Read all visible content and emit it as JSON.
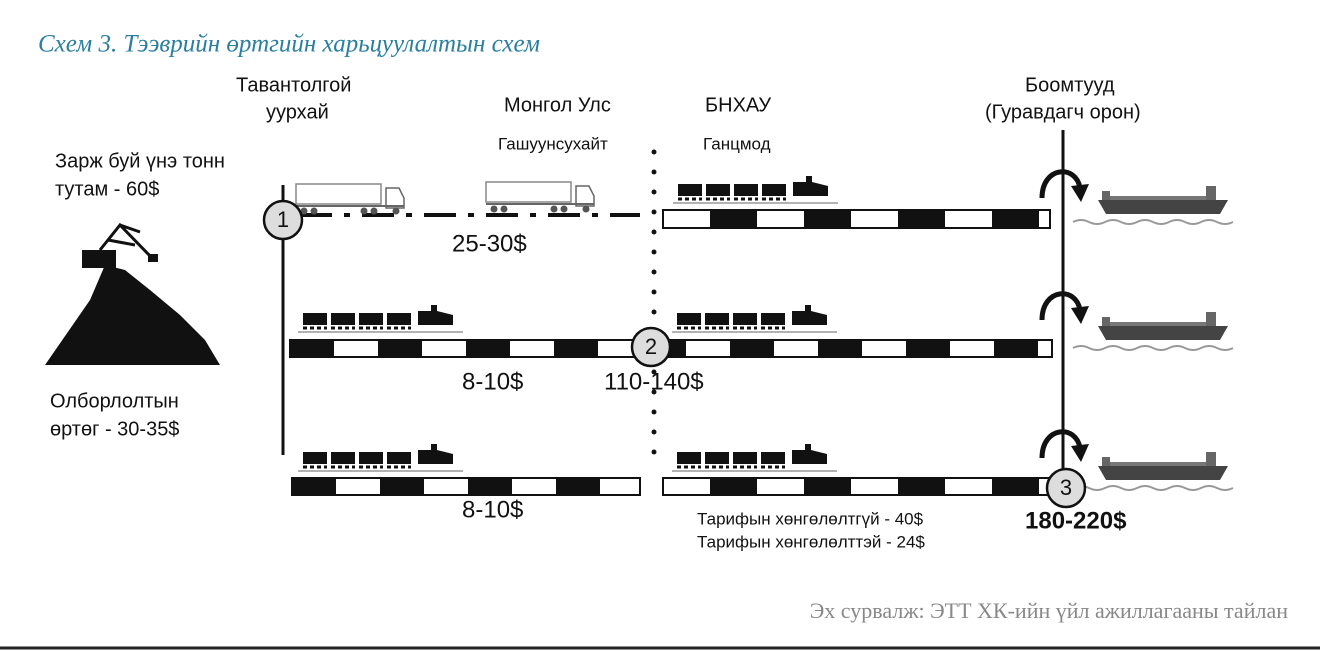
{
  "title": "Схем 3. Тээврийн өртгийн харьцуулалтын схем",
  "headers": {
    "mine": [
      "Тавантолгой",
      "уурхай"
    ],
    "mongolia": "Монгол Улс",
    "border_mn": "Гашуунсухайт",
    "china": "БНХАУ",
    "border_cn": "Ганцмод",
    "ports": [
      "Боомтууд",
      "(Гуравдагч орон)"
    ]
  },
  "sale_price": [
    "Зарж буй үнэ тонн",
    "тутам - 60$"
  ],
  "production_cost": [
    "Олборлолтын",
    "өртөг - 30-35$"
  ],
  "markers": [
    "1",
    "2",
    "3"
  ],
  "costs": {
    "truck": "25-30$",
    "rail_mid": "8-10$",
    "border": "110-140$",
    "rail_low": "8-10$",
    "port": "180-220$"
  },
  "tariffs": [
    "Тарифын хөнгөлөлтгүй - 40$",
    "Тарифын хөнгөлөлттэй - 24$"
  ],
  "source": "Эх сурвалж: ЭТТ ХК-ийн үйл ажиллагааны тайлан"
}
